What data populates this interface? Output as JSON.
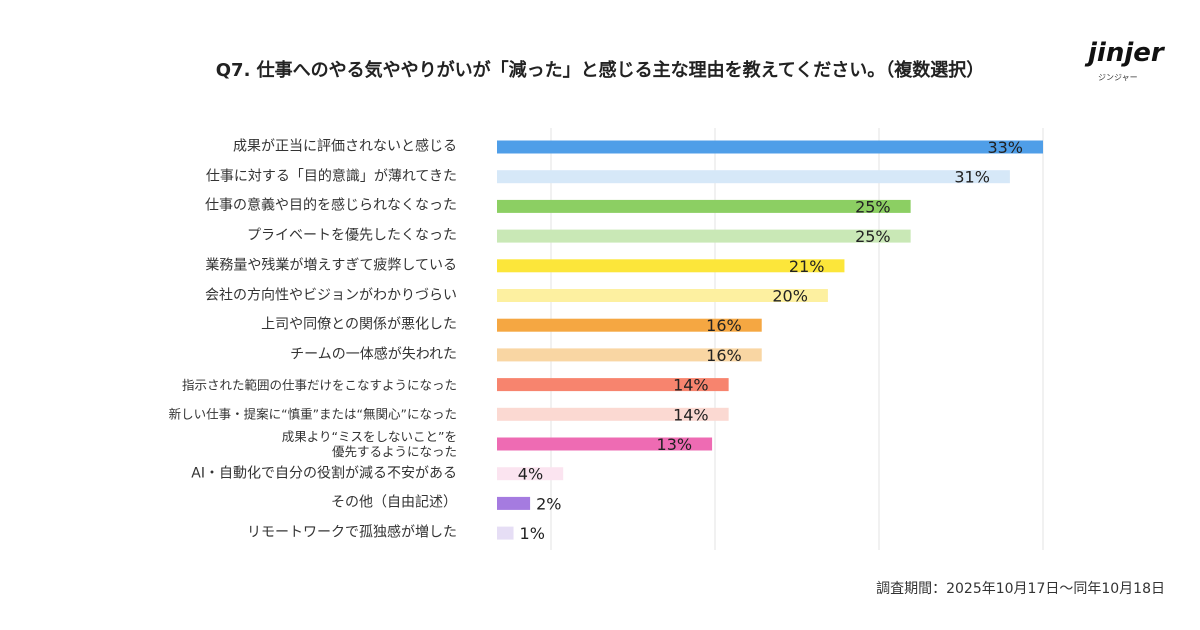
{
  "chart_data": {
    "type": "barh",
    "title": "Q7. 仕事へのやる気ややりがいが「減った」と感じる主な理由を教えてください。（複数選択）",
    "logo": "jinjer",
    "logo_subtitle": "ジンジャー",
    "footnote": "調査期間：2025年10月17日〜同年10月18日",
    "categories": [
      "成果が正当に評価されないと感じる",
      "仕事に対する「目的意識」が薄れてきた",
      "仕事の意義や目的を感じられなくなった",
      "プライベートを優先したくなった",
      "業務量や残業が増えすぎて疲弊している",
      "会社の方向性やビジョンがわかりづらい",
      "上司や同僚との関係が悪化した",
      "チームの一体感が失われた",
      "指示された範囲の仕事だけをこなすようになった",
      "新しい仕事・提案に“慎重”または“無関心”になった",
      "成果より“ミスをしないこと”を\n優先するようになった",
      "AI・自動化で自分の役割が減る不安がある",
      "その他（自由記述）",
      "リモートワークで孤独感が増した"
    ],
    "values": [
      33,
      31,
      25,
      25,
      21,
      20,
      16,
      16,
      14,
      14,
      13,
      4,
      2,
      1
    ],
    "value_labels": [
      "33%",
      "31%",
      "25%",
      "25%",
      "21%",
      "20%",
      "16%",
      "16%",
      "14%",
      "14%",
      "13%",
      "4%",
      "2%",
      "1%"
    ],
    "colors": [
      "#4f9ee8",
      "#d6e8f8",
      "#8ccf63",
      "#c9e8b6",
      "#fce63a",
      "#fdf0a0",
      "#f5a742",
      "#f9d6a3",
      "#f7846e",
      "#fbd9d2",
      "#ee6bb3",
      "#fbe4f0",
      "#a57be0",
      "#e6def5"
    ],
    "xlim": [
      0,
      33
    ]
  }
}
